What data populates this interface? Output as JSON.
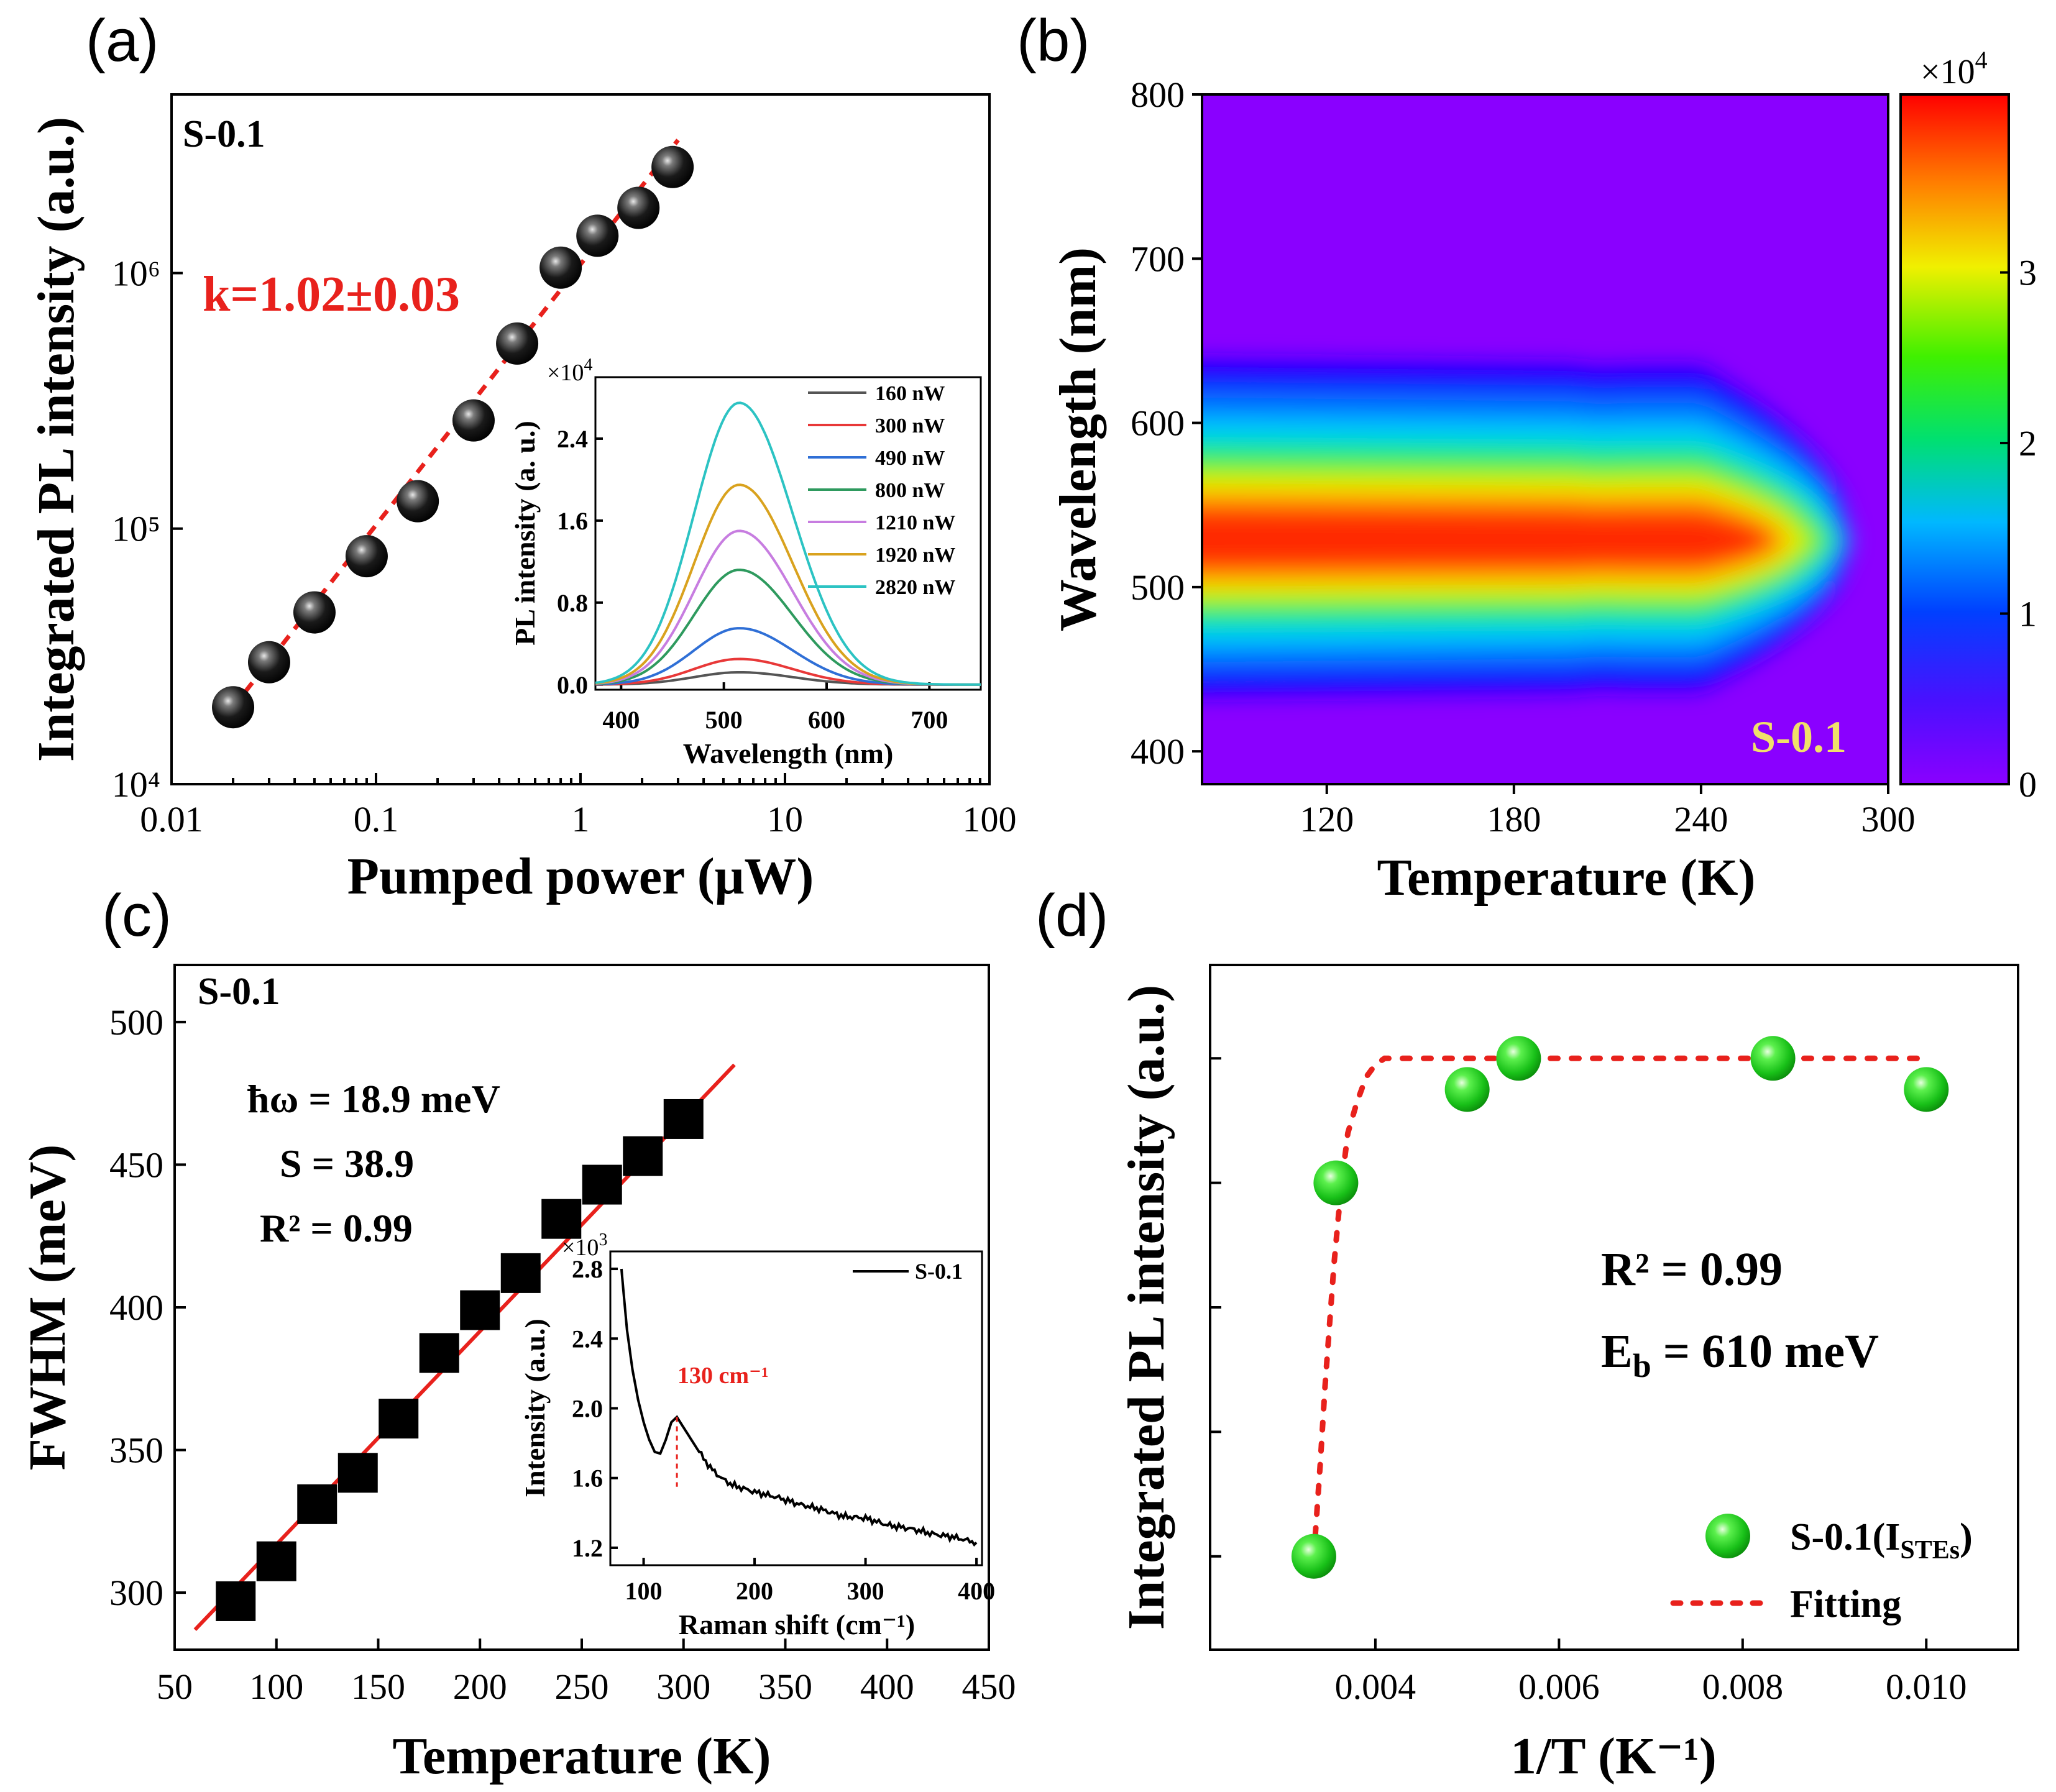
{
  "figure": {
    "panel_a": {
      "tag": "(a)",
      "sample": "S-0.1",
      "annotation": "k=1.02±0.03",
      "inset": {
        "xlabel": "Wavelength (nm)",
        "ylabel": "PL intensity (a. u.)",
        "multiplier": "×10",
        "multiplier_exp": "4"
      }
    },
    "panel_b": {
      "tag": "(b)",
      "sample": "S-0.1",
      "colorbar_multiplier": "×10",
      "colorbar_exp": "4"
    },
    "panel_c": {
      "tag": "(c)",
      "sample": "S-0.1",
      "params": [
        "ħω =  18.9 meV",
        "S = 38.9",
        "R² = 0.99"
      ],
      "inset": {
        "xlabel": "Raman shift (cm⁻¹)",
        "ylabel": "Intensity (a.u.)",
        "multiplier": "×10",
        "multiplier_exp": "3",
        "legend": "S-0.1",
        "peak_label": "130 cm⁻¹"
      }
    },
    "panel_d": {
      "tag": "(d)",
      "r2": "R² = 0.99",
      "eb": "E",
      "eb_sub": "b",
      "eb_val": " = 610 meV",
      "legend_sample": "S-0.1(I",
      "legend_sample_sub": "STEs",
      "legend_sample_end": ")",
      "legend_fit": "Fitting"
    }
  },
  "chart_data": [
    {
      "id": "a",
      "type": "scatter",
      "xscale": "log",
      "yscale": "log",
      "xlabel": "Pumped power (μW)",
      "ylabel": "Integrated PL intensity (a.u.)",
      "xlim": [
        0.01,
        100
      ],
      "ylim": [
        10000,
        5000000
      ],
      "xticks": [
        "0.01",
        "0.1",
        "1",
        "10",
        "100"
      ],
      "yticks": [
        "10⁴",
        "10⁵",
        "10⁶"
      ],
      "x": [
        0.02,
        0.03,
        0.05,
        0.09,
        0.16,
        0.3,
        0.49,
        0.8,
        1.21,
        1.92,
        2.82
      ],
      "y": [
        20000,
        30000,
        47000,
        78000,
        128000,
        265000,
        530000,
        1050000,
        1400000,
        1800000,
        2600000
      ],
      "fit": {
        "slope": 1.02
      }
    },
    {
      "id": "a_inset",
      "type": "line",
      "xlabel": "Wavelength (nm)",
      "ylabel": "PL intensity (a. u.)",
      "xlim": [
        375,
        750
      ],
      "ylim": [
        -0.05,
        3.0
      ],
      "xticks": [
        "400",
        "500",
        "600",
        "700"
      ],
      "yticks": [
        "0.0",
        "0.8",
        "1.6",
        "2.4"
      ],
      "peak_nm": 515,
      "series": [
        {
          "name": "160 nW",
          "peak": 0.12,
          "color": "#555555"
        },
        {
          "name": "300 nW",
          "peak": 0.25,
          "color": "#e83838"
        },
        {
          "name": "490 nW",
          "peak": 0.55,
          "color": "#2f6fd6"
        },
        {
          "name": "800 nW",
          "peak": 1.12,
          "color": "#2e9a5e"
        },
        {
          "name": "1210 nW",
          "peak": 1.5,
          "color": "#c77de0"
        },
        {
          "name": "1920 nW",
          "peak": 1.95,
          "color": "#d9a21e"
        },
        {
          "name": "2820 nW",
          "peak": 2.75,
          "color": "#2cc3c3"
        }
      ]
    },
    {
      "id": "b",
      "type": "heatmap",
      "xlabel": "Temperature (K)",
      "ylabel": "Wavelength (nm)",
      "xlim": [
        80,
        300
      ],
      "ylim": [
        380,
        800
      ],
      "xticks": [
        "120",
        "180",
        "240",
        "300"
      ],
      "yticks": [
        "400",
        "500",
        "600",
        "700",
        "800"
      ],
      "colorbar": {
        "range": [
          0,
          4
        ],
        "ticks": [
          "0",
          "1",
          "2",
          "3"
        ]
      },
      "peak_wavelength_nm": 528
    },
    {
      "id": "c",
      "type": "scatter",
      "xlabel": "Temperature (K)",
      "ylabel": "FWHM (meV)",
      "xlim": [
        50,
        450
      ],
      "ylim": [
        280,
        520
      ],
      "xticks": [
        "50",
        "100",
        "150",
        "200",
        "250",
        "300",
        "350",
        "400",
        "450"
      ],
      "yticks": [
        "300",
        "350",
        "400",
        "450",
        "500"
      ],
      "x": [
        80,
        100,
        120,
        140,
        160,
        180,
        200,
        220,
        240,
        260,
        280,
        300
      ],
      "y": [
        297,
        311,
        331,
        342,
        361,
        384,
        399,
        412,
        431,
        443,
        453,
        466
      ],
      "fit": {
        "x0": 60,
        "y0": 287,
        "x1": 325,
        "y1": 485
      }
    },
    {
      "id": "c_inset",
      "type": "line",
      "xlabel": "Raman shift (cm⁻¹)",
      "ylabel": "Intensity (a.u.)",
      "xlim": [
        70,
        405
      ],
      "ylim": [
        1.1,
        2.9
      ],
      "xticks": [
        "100",
        "200",
        "300",
        "400"
      ],
      "yticks": [
        "1.2",
        "1.6",
        "2.0",
        "2.4",
        "2.8"
      ],
      "series": [
        {
          "name": "S-0.1",
          "x": [
            80,
            85,
            90,
            95,
            100,
            105,
            110,
            115,
            120,
            125,
            130,
            135,
            140,
            150,
            160,
            170,
            180,
            190,
            200,
            220,
            240,
            260,
            280,
            300,
            320,
            340,
            360,
            380,
            400
          ],
          "y": [
            2.8,
            2.45,
            2.22,
            2.05,
            1.92,
            1.82,
            1.75,
            1.74,
            1.82,
            1.92,
            1.95,
            1.9,
            1.85,
            1.75,
            1.66,
            1.6,
            1.56,
            1.54,
            1.52,
            1.49,
            1.45,
            1.42,
            1.38,
            1.37,
            1.33,
            1.31,
            1.28,
            1.26,
            1.23
          ]
        }
      ],
      "peak_x": 130
    },
    {
      "id": "d",
      "type": "scatter",
      "xlabel": "1/T (K⁻¹)",
      "ylabel": "Integrated PL intensity (a.u.)",
      "xlim": [
        0.0022,
        0.011
      ],
      "ylim": [
        0,
        1.1
      ],
      "xticks": [
        "0.004",
        "0.006",
        "0.008",
        "0.010"
      ],
      "x": [
        0.00333,
        0.00357,
        0.005,
        0.00556,
        0.00833,
        0.01
      ],
      "y": [
        0.15,
        0.75,
        0.9,
        0.95,
        0.95,
        0.9
      ],
      "fit": {
        "x": [
          0.00333,
          0.0034,
          0.00345,
          0.0035,
          0.00355,
          0.0036,
          0.00365,
          0.0037,
          0.0038,
          0.0039,
          0.004,
          0.0041,
          0.005,
          0.006,
          0.008,
          0.01
        ],
        "y": [
          0.15,
          0.3,
          0.42,
          0.52,
          0.62,
          0.7,
          0.77,
          0.83,
          0.88,
          0.92,
          0.94,
          0.95,
          0.95,
          0.95,
          0.95,
          0.95
        ]
      }
    }
  ]
}
